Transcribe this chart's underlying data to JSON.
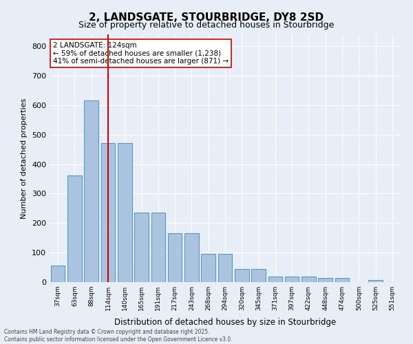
{
  "title_line1": "2, LANDSGATE, STOURBRIDGE, DY8 2SD",
  "title_line2": "Size of property relative to detached houses in Stourbridge",
  "xlabel": "Distribution of detached houses by size in Stourbridge",
  "ylabel": "Number of detached properties",
  "categories": [
    "37sqm",
    "63sqm",
    "88sqm",
    "114sqm",
    "140sqm",
    "165sqm",
    "191sqm",
    "217sqm",
    "243sqm",
    "268sqm",
    "294sqm",
    "320sqm",
    "345sqm",
    "371sqm",
    "397sqm",
    "422sqm",
    "448sqm",
    "474sqm",
    "500sqm",
    "525sqm",
    "551sqm"
  ],
  "values": [
    57,
    362,
    617,
    472,
    472,
    236,
    236,
    165,
    165,
    96,
    96,
    44,
    44,
    18,
    18,
    18,
    13,
    13,
    0,
    8,
    0
  ],
  "bar_color": "#aac4e0",
  "bar_edge_color": "#5a96c8",
  "vline_x": 3,
  "vline_color": "#cc0000",
  "annotation_title": "2 LANDSGATE: 124sqm",
  "annotation_line1": "← 59% of detached houses are smaller (1,238)",
  "annotation_line2": "41% of semi-detached houses are larger (871) →",
  "annotation_box_color": "#ffffff",
  "annotation_box_edge": "#cc0000",
  "footer_line1": "Contains HM Land Registry data © Crown copyright and database right 2025.",
  "footer_line2": "Contains public sector information licensed under the Open Government Licence v3.0.",
  "bg_color": "#e8eef8",
  "plot_bg_color": "#e8eef8",
  "grid_color": "#ffffff",
  "ylim": [
    0,
    840
  ],
  "yticks": [
    0,
    100,
    200,
    300,
    400,
    500,
    600,
    700,
    800
  ]
}
